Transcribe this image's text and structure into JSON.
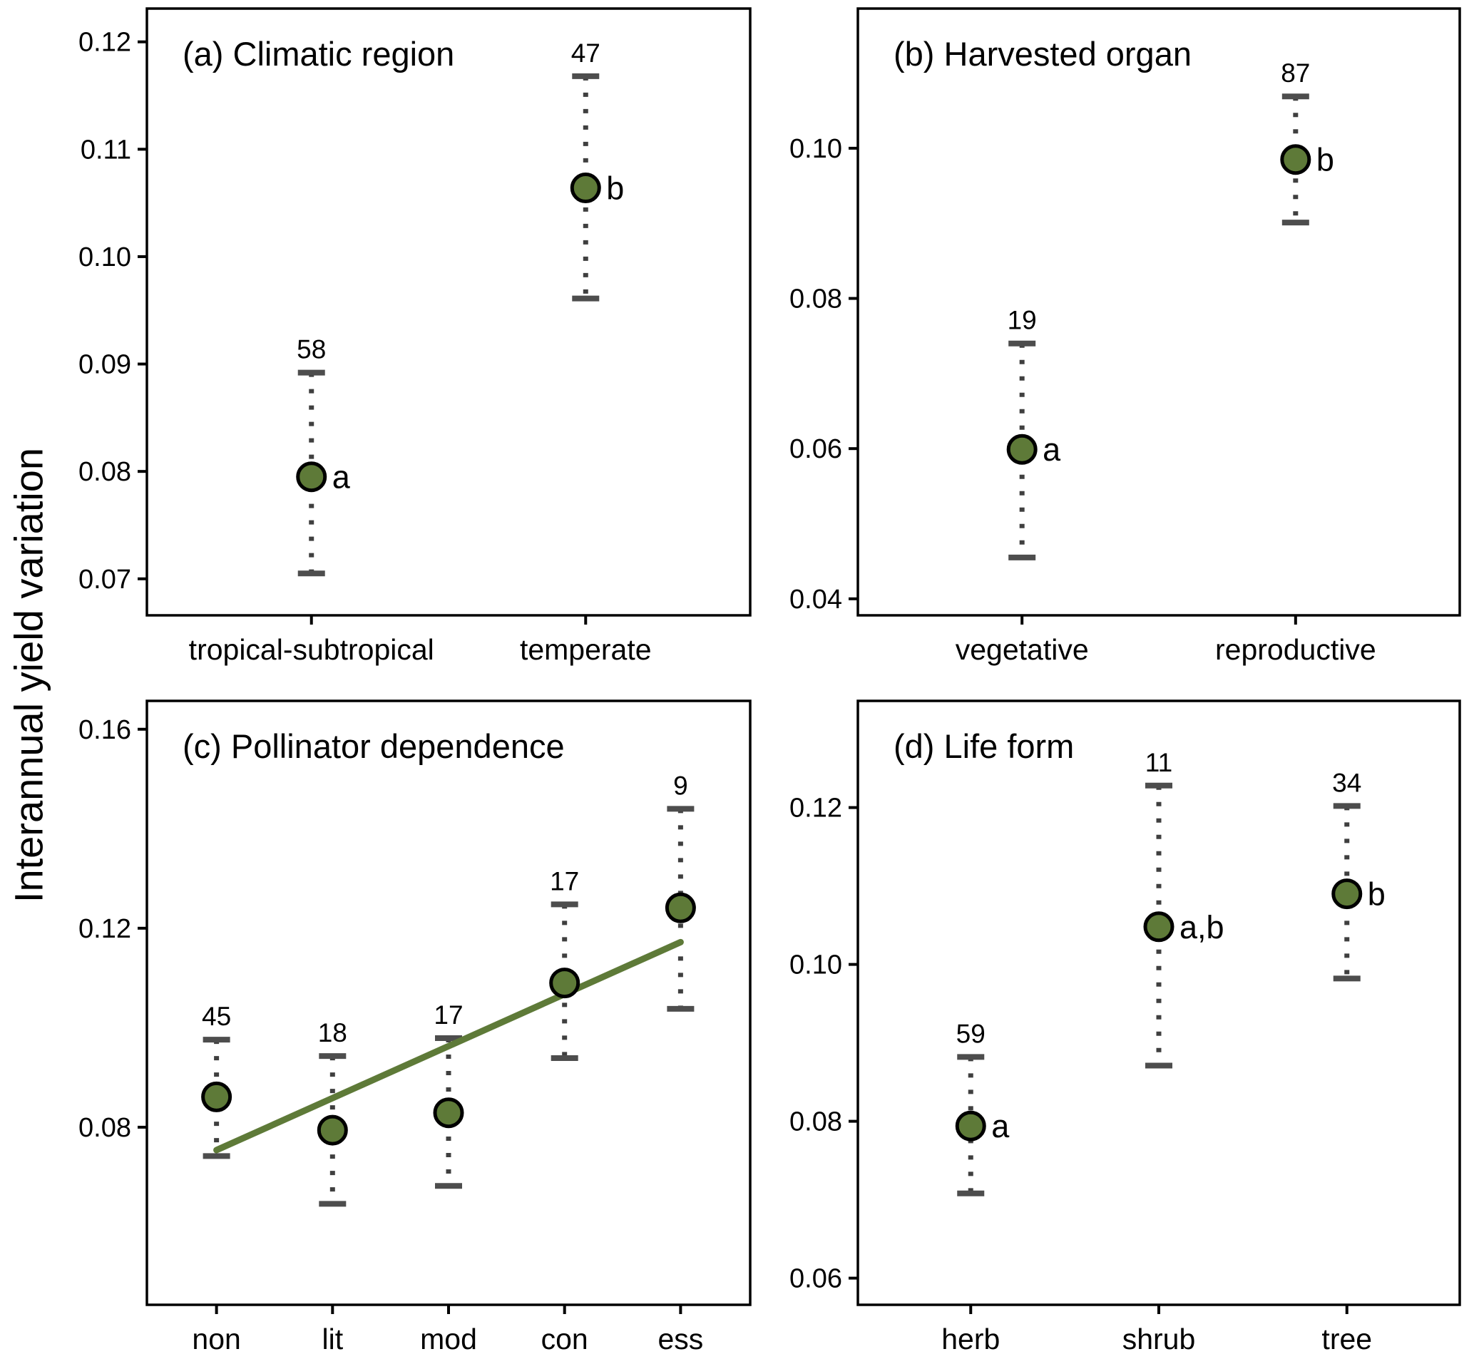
{
  "chart_data": {
    "type": "scatter",
    "subtype": "dot-and-whisker (mean with confidence interval, dotted whiskers, capped ends)",
    "ylabel": "Interannual yield variation",
    "colors": {
      "point_fill": "#5e7a38",
      "point_border": "#000000",
      "whisker": "#3f3f3f",
      "cap": "#4d4d4d",
      "trend_line": "#5e7a38",
      "frame": "#000000"
    },
    "panels": [
      {
        "label": "(a) Climatic region",
        "ylim": [
          0.0666,
          0.1231
        ],
        "yticks": [
          "0.07",
          "0.08",
          "0.09",
          "0.10",
          "0.11",
          "0.12"
        ],
        "categories": [
          "tropical-subtropical",
          "temperate"
        ],
        "points": [
          {
            "category": "tropical-subtropical",
            "n": "58",
            "letter": "a",
            "mean": 0.0795,
            "lo": 0.0705,
            "hi": 0.0892
          },
          {
            "category": "temperate",
            "n": "47",
            "letter": "b",
            "mean": 0.1064,
            "lo": 0.0961,
            "hi": 0.1168
          }
        ]
      },
      {
        "label": "(b) Harvested organ",
        "ylim": [
          0.0378,
          0.1186
        ],
        "yticks": [
          "0.04",
          "0.06",
          "0.08",
          "0.10"
        ],
        "categories": [
          "vegetative",
          "reproductive"
        ],
        "points": [
          {
            "category": "vegetative",
            "n": "19",
            "letter": "a",
            "mean": 0.0599,
            "lo": 0.0455,
            "hi": 0.074
          },
          {
            "category": "reproductive",
            "n": "87",
            "letter": "b",
            "mean": 0.0985,
            "lo": 0.0901,
            "hi": 0.1069
          }
        ]
      },
      {
        "label": "(c) Pollinator dependence",
        "ylim": [
          0.0443,
          0.1657
        ],
        "yticks": [
          "0.08",
          "0.12",
          "0.16"
        ],
        "categories": [
          "non",
          "lit",
          "mod",
          "con",
          "ess"
        ],
        "points": [
          {
            "category": "non",
            "n": "45",
            "letter": "",
            "mean": 0.0861,
            "lo": 0.0742,
            "hi": 0.0976
          },
          {
            "category": "lit",
            "n": "18",
            "letter": "",
            "mean": 0.0794,
            "lo": 0.0646,
            "hi": 0.0943
          },
          {
            "category": "mod",
            "n": "17",
            "letter": "",
            "mean": 0.0829,
            "lo": 0.0682,
            "hi": 0.0979
          },
          {
            "category": "con",
            "n": "17",
            "letter": "",
            "mean": 0.109,
            "lo": 0.0939,
            "hi": 0.1248
          },
          {
            "category": "ess",
            "n": "9",
            "letter": "",
            "mean": 0.1241,
            "lo": 0.1038,
            "hi": 0.144
          }
        ],
        "trend": {
          "x1_category": "non",
          "y1": 0.0754,
          "x2_category": "ess",
          "y2": 0.1172
        }
      },
      {
        "label": "(d) Life form",
        "ylim": [
          0.0566,
          0.1336
        ],
        "yticks": [
          "0.06",
          "0.08",
          "0.10",
          "0.12"
        ],
        "categories": [
          "herb",
          "shrub",
          "tree"
        ],
        "points": [
          {
            "category": "herb",
            "n": "59",
            "letter": "a",
            "mean": 0.0794,
            "lo": 0.0708,
            "hi": 0.0882
          },
          {
            "category": "shrub",
            "n": "11",
            "letter": "a,b",
            "mean": 0.1048,
            "lo": 0.0871,
            "hi": 0.1228
          },
          {
            "category": "tree",
            "n": "34",
            "letter": "b",
            "mean": 0.109,
            "lo": 0.0982,
            "hi": 0.1202
          }
        ]
      }
    ]
  }
}
